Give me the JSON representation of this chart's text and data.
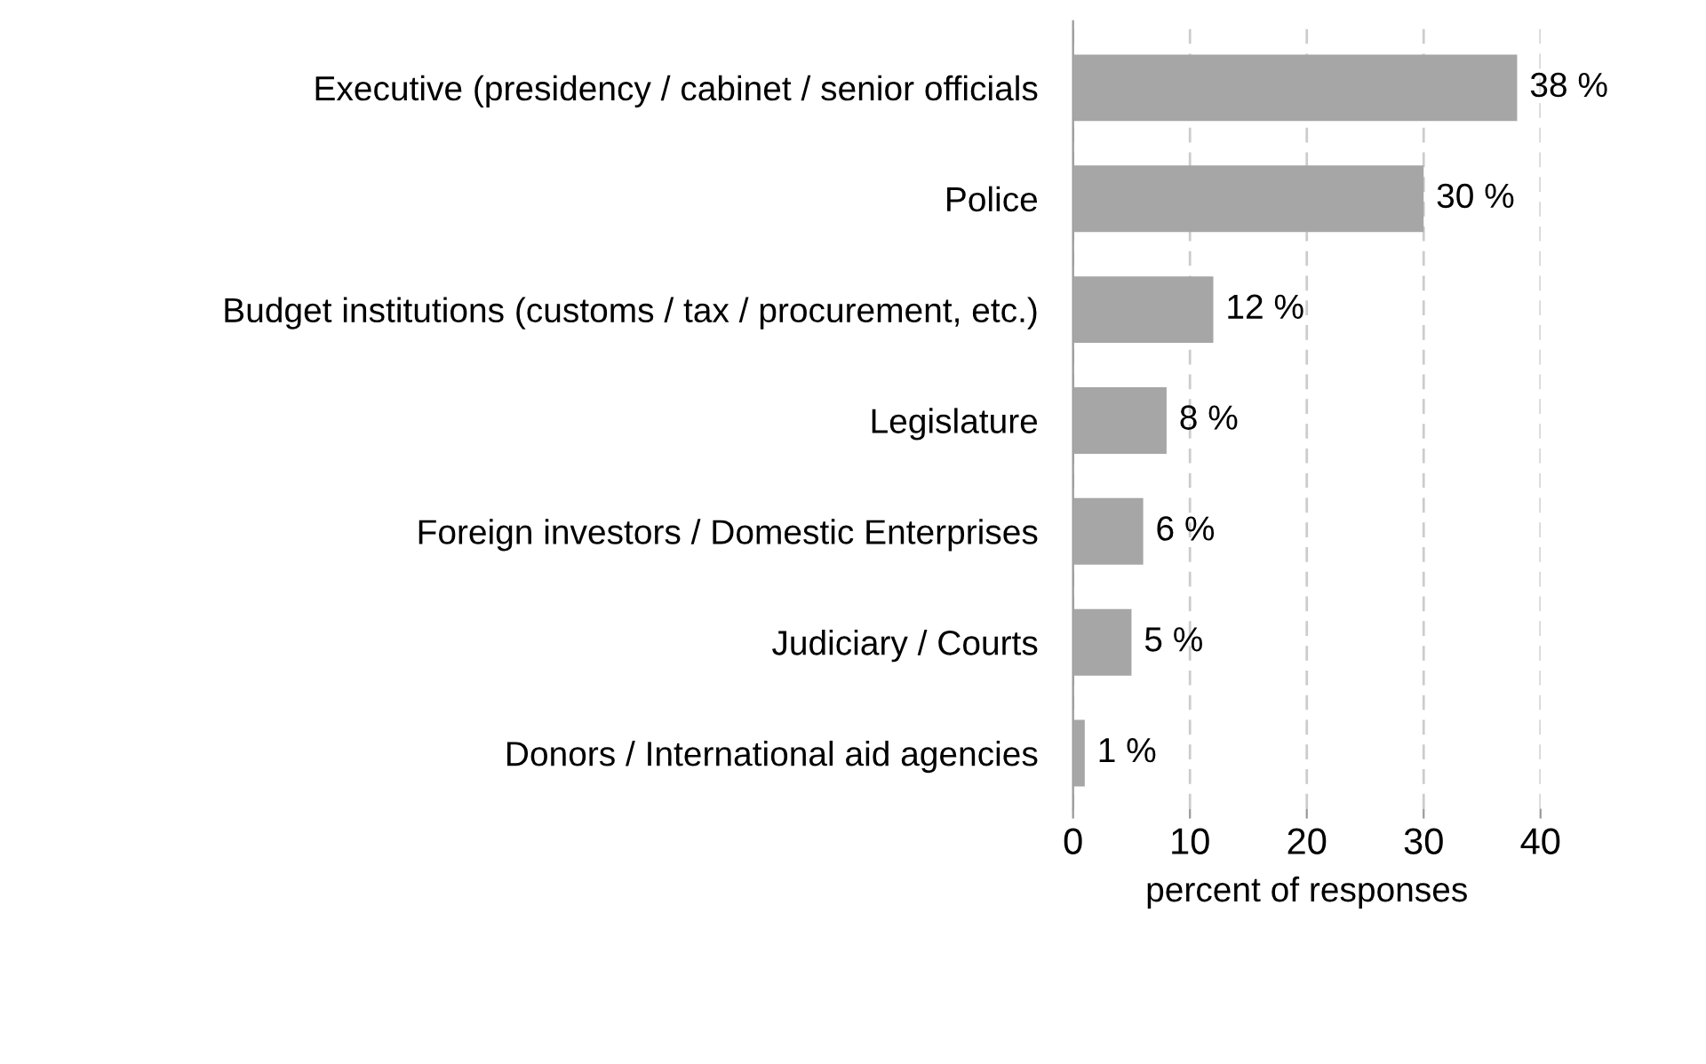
{
  "chart_data": {
    "type": "bar",
    "orientation": "horizontal",
    "xlabel": "percent of responses",
    "categories": [
      "Executive (presidency / cabinet / senior officials",
      "Police",
      "Budget institutions (customs / tax / procurement, etc.)",
      "Legislature",
      "Foreign investors / Domestic Enterprises",
      "Judiciary / Courts",
      "Donors / International aid agencies"
    ],
    "values": [
      38,
      30,
      12,
      8,
      6,
      5,
      1
    ],
    "value_labels": [
      "38 %",
      "30 %",
      "12 %",
      "8 %",
      "6 %",
      "5 %",
      "1 %"
    ],
    "color": "#a6a6a6",
    "xlim": [
      0,
      40
    ],
    "xticks": [
      0,
      10,
      20,
      30,
      40
    ],
    "grid": "x",
    "line_style": "dashed"
  }
}
